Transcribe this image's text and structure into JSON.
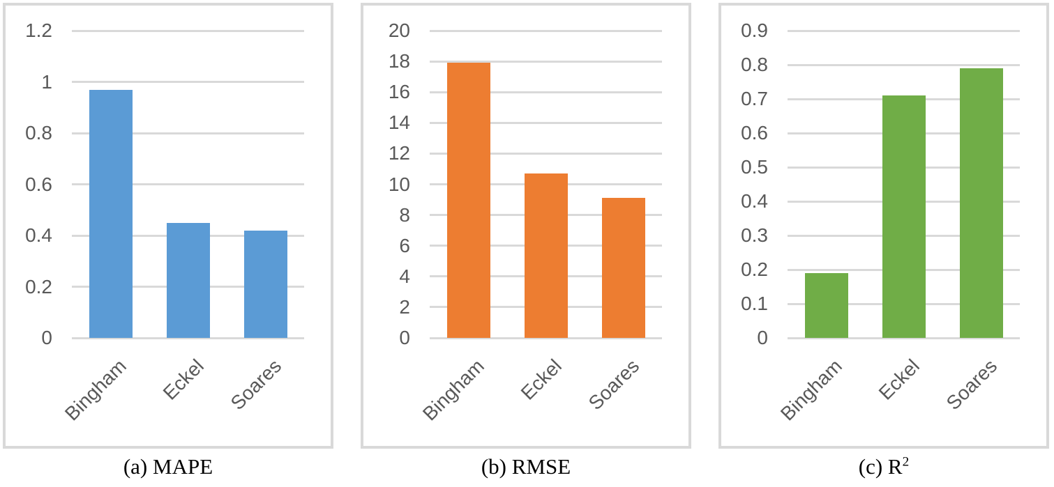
{
  "styles": {
    "background": "#FFFFFF",
    "panel_border_color": "#D9D9D9",
    "gridline_color": "#D9D9D9",
    "axis_label_color": "#595959",
    "caption_color": "#000000"
  },
  "chart_data": [
    {
      "type": "bar",
      "title": "(a) MAPE",
      "caption_text": "(a) MAPE",
      "caption_sup": "",
      "categories": [
        "Bingham",
        "Eckel",
        "Soares"
      ],
      "values": [
        0.97,
        0.45,
        0.42
      ],
      "bar_color": "#5B9BD5",
      "ylim": [
        0,
        1.2
      ],
      "ytick_values": [
        1.2,
        1.0,
        0.8,
        0.6,
        0.4,
        0.2,
        0
      ],
      "ytick_labels": [
        "1.2",
        "1",
        "0.8",
        "0.6",
        "0.4",
        "0.2",
        "0"
      ],
      "xlabel": "",
      "ylabel": "",
      "grid": true,
      "legend_position": "none"
    },
    {
      "type": "bar",
      "title": "(b) RMSE",
      "caption_text": "(b) RMSE",
      "caption_sup": "",
      "categories": [
        "Bingham",
        "Eckel",
        "Soares"
      ],
      "values": [
        17.9,
        10.7,
        9.1
      ],
      "bar_color": "#ED7D31",
      "ylim": [
        0,
        20
      ],
      "ytick_values": [
        20,
        18,
        16,
        14,
        12,
        10,
        8,
        6,
        4,
        2,
        0
      ],
      "ytick_labels": [
        "20",
        "18",
        "16",
        "14",
        "12",
        "10",
        "8",
        "6",
        "4",
        "2",
        "0"
      ],
      "xlabel": "",
      "ylabel": "",
      "grid": true,
      "legend_position": "none"
    },
    {
      "type": "bar",
      "title": "(c) R²",
      "caption_text": "(c) R",
      "caption_sup": "2",
      "categories": [
        "Bingham",
        "Eckel",
        "Soares"
      ],
      "values": [
        0.19,
        0.71,
        0.79
      ],
      "bar_color": "#70AD47",
      "ylim": [
        0,
        0.9
      ],
      "ytick_values": [
        0.9,
        0.8,
        0.7,
        0.6,
        0.5,
        0.4,
        0.3,
        0.2,
        0.1,
        0
      ],
      "ytick_labels": [
        "0.9",
        "0.8",
        "0.7",
        "0.6",
        "0.5",
        "0.4",
        "0.3",
        "0.2",
        "0.1",
        "0"
      ],
      "xlabel": "",
      "ylabel": "",
      "grid": true,
      "legend_position": "none"
    }
  ]
}
